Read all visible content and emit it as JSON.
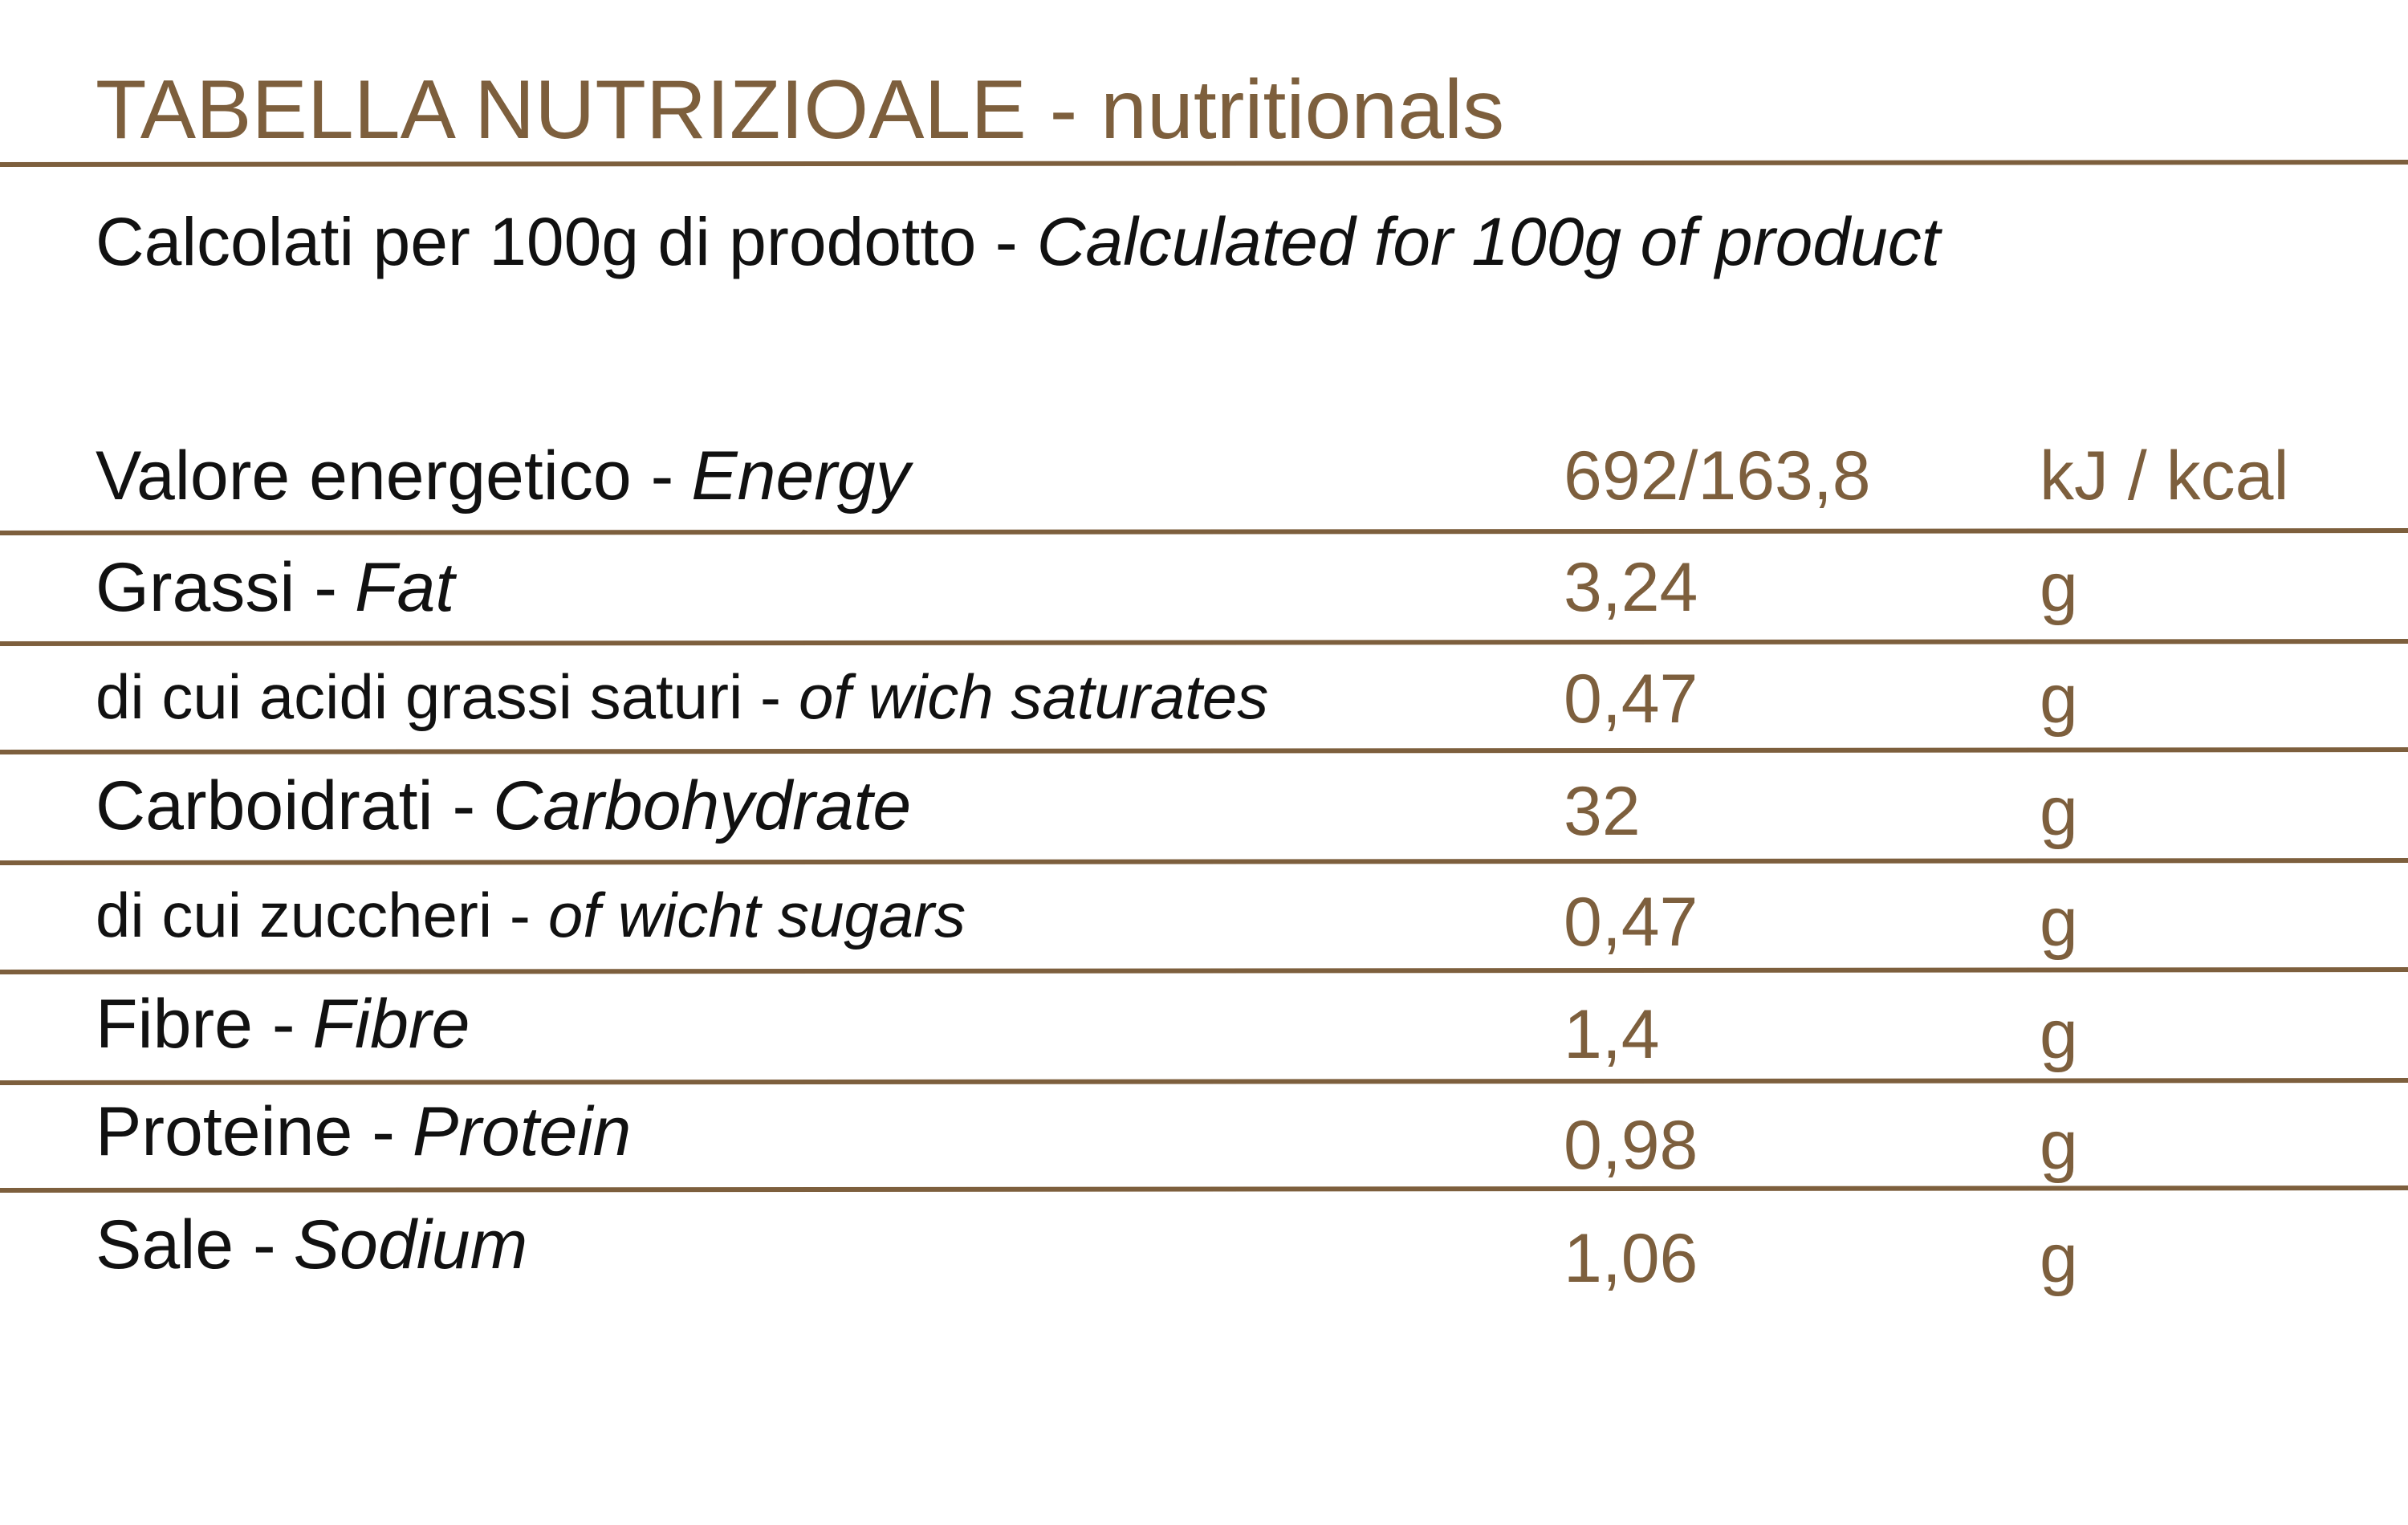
{
  "header": {
    "title": "TABELLA NUTRIZIOALE - nutritionals",
    "subtitle": {
      "it": "Calcolati per 100g di prodotto -",
      "en": "Calculated for 100g of product"
    }
  },
  "table": {
    "rows": [
      {
        "it": "Valore energetico -",
        "en": "Energy",
        "value": "692/163,8",
        "unit": "kJ / kcal"
      },
      {
        "it": "Grassi -",
        "en": "Fat",
        "value": "3,24",
        "unit": "g"
      },
      {
        "it": "di cui acidi grassi saturi -",
        "en": "of wich saturates",
        "value": "0,47",
        "unit": "g"
      },
      {
        "it": "Carboidrati -",
        "en": "Carbohydrate",
        "value": "32",
        "unit": "g"
      },
      {
        "it": "di cui zuccheri -",
        "en": "of wicht sugars",
        "value": "0,47",
        "unit": "g"
      },
      {
        "it": "Fibre -",
        "en": "Fibre",
        "value": "1,4",
        "unit": "g"
      },
      {
        "it": "Proteine -",
        "en": "Protein",
        "value": "0,98",
        "unit": "g"
      },
      {
        "it": "Sale -",
        "en": "Sodium",
        "value": "1,06",
        "unit": "g"
      }
    ]
  }
}
